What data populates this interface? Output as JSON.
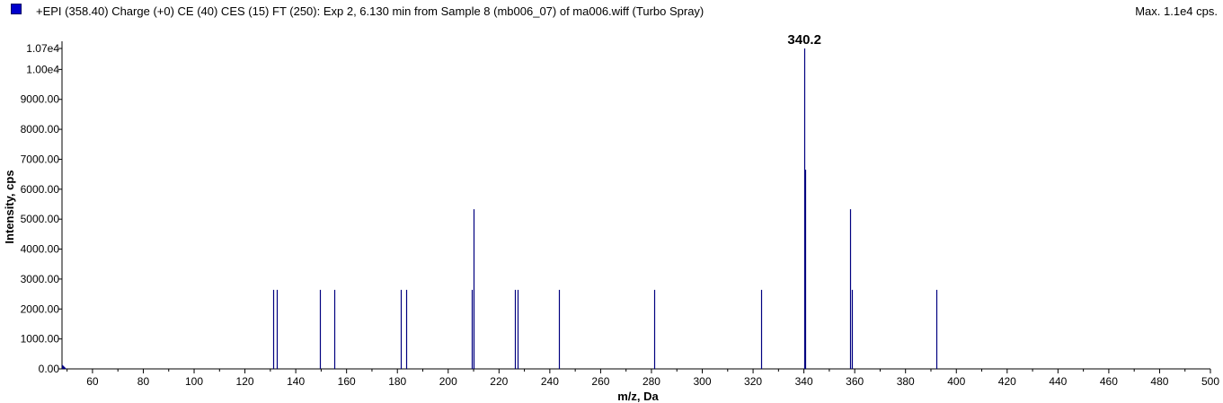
{
  "header": {
    "title": "+EPI (358.40) Charge (+0) CE (40) CES (15) FT (250): Exp 2, 6.130 min from Sample 8 (mb006_07) of ma006.wiff (Turbo Spray)",
    "max_label": "Max. 1.1e4 cps."
  },
  "colors": {
    "series": "#000080",
    "swatch": "#0000cc"
  },
  "chart_data": {
    "type": "bar",
    "xlabel": "m/z, Da",
    "ylabel": "Intensity, cps",
    "xlim": [
      48,
      500
    ],
    "ylim": [
      0,
      10700
    ],
    "x_ticks": [
      60,
      80,
      100,
      120,
      140,
      160,
      180,
      200,
      220,
      240,
      260,
      280,
      300,
      320,
      340,
      360,
      380,
      400,
      420,
      440,
      460,
      480,
      500
    ],
    "y_ticks": [
      {
        "value": 0,
        "label": "0.00"
      },
      {
        "value": 1000,
        "label": "1000.00"
      },
      {
        "value": 2000,
        "label": "2000.00"
      },
      {
        "value": 3000,
        "label": "3000.00"
      },
      {
        "value": 4000,
        "label": "4000.00"
      },
      {
        "value": 5000,
        "label": "5000.00"
      },
      {
        "value": 6000,
        "label": "6000.00"
      },
      {
        "value": 7000,
        "label": "7000.00"
      },
      {
        "value": 8000,
        "label": "8000.00"
      },
      {
        "value": 9000,
        "label": "9000.00"
      },
      {
        "value": 10000,
        "label": "1.00e4"
      },
      {
        "value": 10700,
        "label": "1.07e4"
      }
    ],
    "peaks": [
      {
        "mz": 131.1,
        "intensity": 2640
      },
      {
        "mz": 132.6,
        "intensity": 2640
      },
      {
        "mz": 149.6,
        "intensity": 2640
      },
      {
        "mz": 155.0,
        "intensity": 2640
      },
      {
        "mz": 181.3,
        "intensity": 2640
      },
      {
        "mz": 183.4,
        "intensity": 2640
      },
      {
        "mz": 209.4,
        "intensity": 2640
      },
      {
        "mz": 210.1,
        "intensity": 5330
      },
      {
        "mz": 226.4,
        "intensity": 2640
      },
      {
        "mz": 227.3,
        "intensity": 2640
      },
      {
        "mz": 243.6,
        "intensity": 2640
      },
      {
        "mz": 281.2,
        "intensity": 2640
      },
      {
        "mz": 323.1,
        "intensity": 2640
      },
      {
        "mz": 340.2,
        "intensity": 10700
      },
      {
        "mz": 340.6,
        "intensity": 6650
      },
      {
        "mz": 358.2,
        "intensity": 5330
      },
      {
        "mz": 358.8,
        "intensity": 2640
      },
      {
        "mz": 392.0,
        "intensity": 2640
      }
    ],
    "annotations": [
      {
        "text": "340.2",
        "mz": 340.2,
        "intensity": 10700
      }
    ]
  }
}
